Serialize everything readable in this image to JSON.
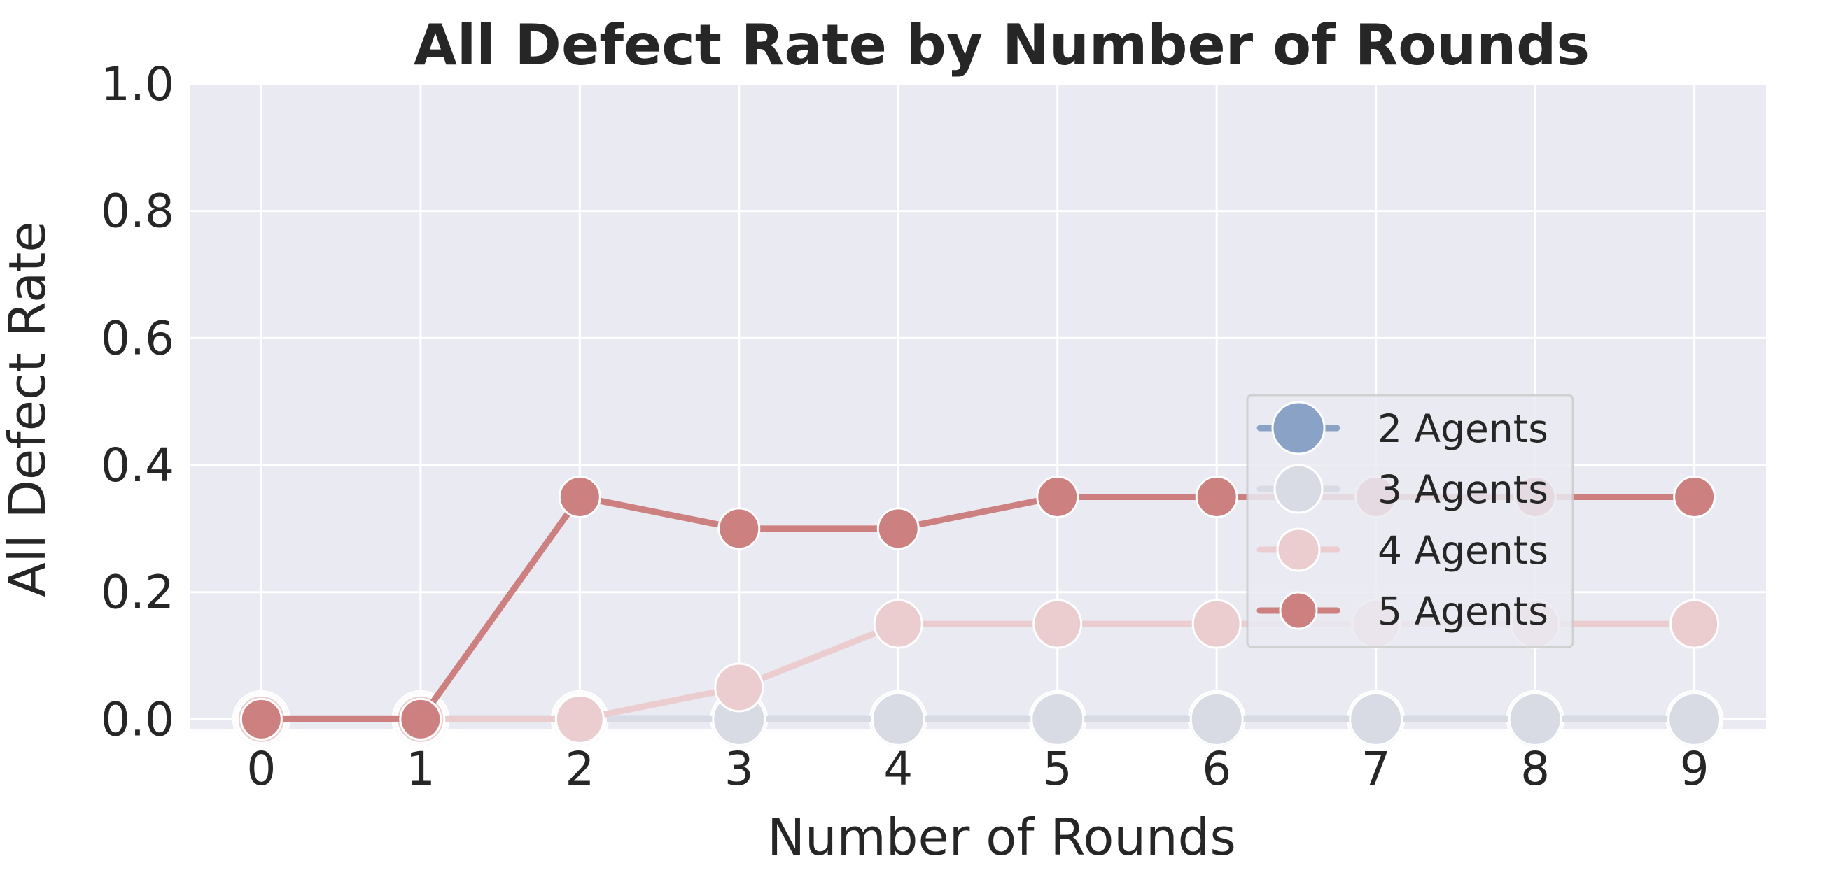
{
  "chart_data": {
    "type": "line",
    "title": "All Defect Rate by Number of Rounds",
    "xlabel": "Number of Rounds",
    "ylabel": "All Defect Rate",
    "x": [
      0,
      1,
      2,
      3,
      4,
      5,
      6,
      7,
      8,
      9
    ],
    "xlim": [
      -0.45,
      9.45
    ],
    "ylim": [
      -0.015,
      1.0
    ],
    "yticks": [
      "0.0",
      "0.2",
      "0.4",
      "0.6",
      "0.8",
      "1.0"
    ],
    "ytick_values": [
      0.0,
      0.2,
      0.4,
      0.6,
      0.8,
      1.0
    ],
    "grid": true,
    "legend_position": "center-right",
    "series": [
      {
        "name": "2 Agents",
        "color": "#8aa2c5",
        "marker_size": "large",
        "values": [
          0,
          0,
          0,
          0,
          0,
          0,
          0,
          0,
          0,
          0
        ]
      },
      {
        "name": "3 Agents",
        "color": "#d8dbe4",
        "marker_size": "large",
        "values": [
          0,
          0,
          0,
          0,
          0,
          0,
          0,
          0,
          0,
          0
        ]
      },
      {
        "name": "4 Agents",
        "color": "#ebcdcf",
        "marker_size": "medium",
        "values": [
          0,
          0,
          0,
          0.05,
          0.15,
          0.15,
          0.15,
          0.15,
          0.15,
          0.15
        ]
      },
      {
        "name": "5 Agents",
        "color": "#cd8080",
        "marker_size": "small",
        "values": [
          0,
          0,
          0.35,
          0.3,
          0.3,
          0.35,
          0.35,
          0.35,
          0.35,
          0.35
        ]
      }
    ]
  }
}
